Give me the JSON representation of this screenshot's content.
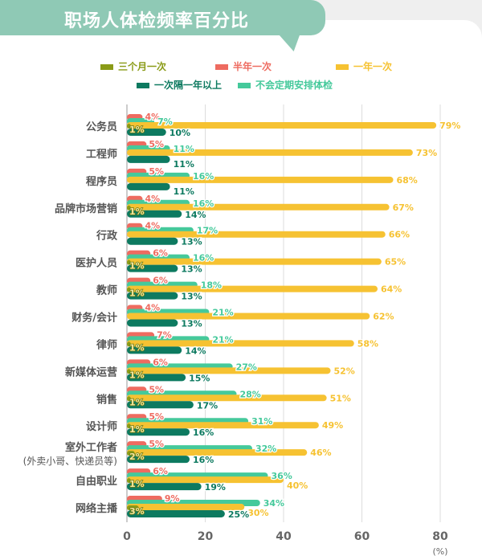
{
  "title": "职场人体检频率百分比",
  "chart_data": {
    "type": "bar",
    "orientation": "horizontal",
    "title": "职场人体检频率百分比",
    "xlabel": "(%)",
    "xlim": [
      0,
      80
    ],
    "xticks": [
      "0",
      "20",
      "40",
      "60",
      "80"
    ],
    "grid": true,
    "legend_position": "top",
    "categories": [
      "公务员",
      "工程师",
      "程序员",
      "品牌市场营销",
      "行政",
      "医护人员",
      "教师",
      "财务/会计",
      "律师",
      "新媒体运营",
      "销售",
      "设计师",
      "室外工作者\n(外卖小哥、快递员等)",
      "自由职业",
      "网络主播"
    ],
    "series": [
      {
        "name": "三个月一次",
        "color": "#8a9b17",
        "values": [
          1,
          null,
          null,
          1,
          null,
          1,
          1,
          null,
          1,
          1,
          1,
          1,
          2,
          1,
          3
        ]
      },
      {
        "name": "半年一次",
        "color": "#ee6b60",
        "values": [
          4,
          5,
          5,
          4,
          4,
          6,
          6,
          4,
          7,
          6,
          5,
          5,
          5,
          6,
          9
        ]
      },
      {
        "name": "一年一次",
        "color": "#f6c232",
        "values": [
          79,
          73,
          68,
          67,
          66,
          65,
          64,
          62,
          58,
          52,
          51,
          49,
          46,
          40,
          30
        ]
      },
      {
        "name": "一次隔一年以上",
        "color": "#0d7a60",
        "values": [
          10,
          11,
          11,
          14,
          13,
          13,
          13,
          13,
          14,
          15,
          17,
          16,
          16,
          19,
          25
        ]
      },
      {
        "name": "不会定期安排体检",
        "color": "#45c99b",
        "values": [
          7,
          11,
          16,
          16,
          17,
          16,
          18,
          21,
          21,
          27,
          28,
          31,
          32,
          36,
          34
        ]
      }
    ]
  }
}
